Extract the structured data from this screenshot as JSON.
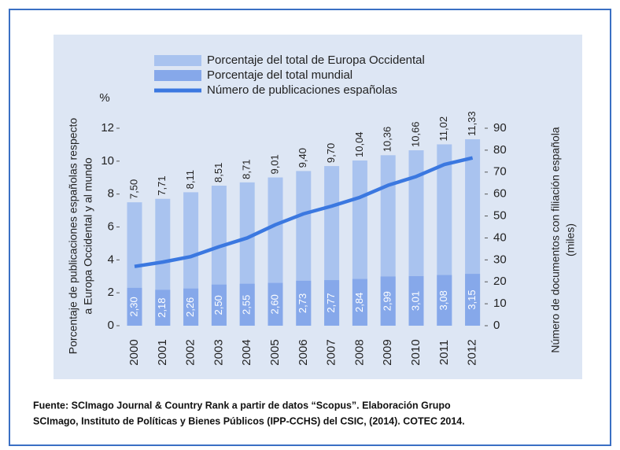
{
  "chart_data": {
    "type": "bar",
    "y_label_lines": [
      "Porcentaje de publicaciones españolas respecto",
      "a Europa Occidental y al mundo"
    ],
    "y_unit": "%",
    "y2_label_lines": [
      "Número de documentos con filiación española",
      "(miles)"
    ],
    "categories": [
      "2000",
      "2001",
      "2002",
      "2003",
      "2004",
      "2005",
      "2006",
      "2007",
      "2008",
      "2009",
      "2010",
      "2011",
      "2012"
    ],
    "series": [
      {
        "name": "Porcentaje del total de Europa Occidental",
        "color": "#a9c3ef",
        "values": [
          7.5,
          7.71,
          8.11,
          8.51,
          8.71,
          9.01,
          9.4,
          9.7,
          10.04,
          10.36,
          10.66,
          11.02,
          11.33
        ],
        "value_labels": [
          "7,50",
          "7,71",
          "8,11",
          "8,51",
          "8,71",
          "9,01",
          "9,40",
          "9,70",
          "10,04",
          "10,36",
          "10,66",
          "11,02",
          "11,33"
        ]
      },
      {
        "name": "Porcentaje del total mundial",
        "color": "#86a8ea",
        "values": [
          2.3,
          2.18,
          2.26,
          2.5,
          2.55,
          2.6,
          2.73,
          2.77,
          2.84,
          2.99,
          3.01,
          3.08,
          3.15
        ],
        "value_labels": [
          "2,30",
          "2,18",
          "2,26",
          "2,50",
          "2,55",
          "2,60",
          "2,73",
          "2,77",
          "2,84",
          "2,99",
          "3,01",
          "3,08",
          "3,15"
        ]
      },
      {
        "name": "Número de publicaciones españolas",
        "color": "#3b78e0",
        "axis": "y2",
        "type": "line",
        "values": [
          27,
          29,
          31.5,
          36,
          40,
          46,
          51,
          54.5,
          58.5,
          64,
          68,
          73.5,
          76.5
        ]
      }
    ],
    "ylim": [
      0,
      12
    ],
    "yticks": [
      0,
      2,
      4,
      6,
      8,
      10,
      12
    ],
    "y2lim": [
      0,
      90
    ],
    "y2ticks": [
      0,
      10,
      20,
      30,
      40,
      50,
      60,
      70,
      80,
      90
    ],
    "grid": false,
    "legend": "top"
  },
  "source": [
    "Fuente: SCImago Journal  & Country  Rank a partir de datos “Scopus”. Elaboración  Grupo",
    "SCImago, Instituto  de Políticas y Bienes Públicos  (IPP-CCHS) del CSIC, (2014).  COTEC 2014."
  ]
}
